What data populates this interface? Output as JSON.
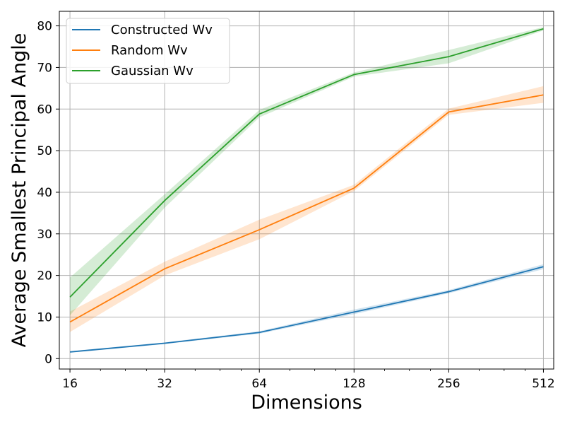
{
  "chart_data": {
    "type": "line",
    "xlabel": "Dimensions",
    "ylabel": "Average Smallest Principal Angle",
    "xscale": "log2",
    "xlim": [
      14.8,
      552
    ],
    "ylim": [
      -2.5,
      83.5
    ],
    "grid": true,
    "legend_position": "upper-left",
    "x_ticks": [
      16,
      32,
      64,
      128,
      256,
      512
    ],
    "x_tick_labels": [
      "16",
      "32",
      "64",
      "128",
      "256",
      "512"
    ],
    "y_ticks": [
      0,
      10,
      20,
      30,
      40,
      50,
      60,
      70,
      80
    ],
    "y_tick_labels": [
      "0",
      "10",
      "20",
      "30",
      "40",
      "50",
      "60",
      "70",
      "80"
    ],
    "x": [
      16,
      32,
      64,
      128,
      256,
      512
    ],
    "series": [
      {
        "name": "Constructed Wv",
        "color": "#1f77b4",
        "values": [
          1.6,
          3.7,
          6.3,
          11.2,
          16.1,
          22.1
        ],
        "lower": [
          1.4,
          3.5,
          6.0,
          10.7,
          15.7,
          21.5
        ],
        "upper": [
          1.8,
          3.9,
          6.6,
          11.8,
          16.5,
          22.7
        ]
      },
      {
        "name": "Random Wv",
        "color": "#ff7f0e",
        "values": [
          8.8,
          21.6,
          31.0,
          41.0,
          59.3,
          63.4
        ],
        "lower": [
          6.4,
          20.0,
          28.7,
          40.3,
          58.6,
          61.5
        ],
        "upper": [
          11.3,
          23.3,
          33.4,
          41.8,
          60.1,
          65.5
        ]
      },
      {
        "name": "Gaussian Wv",
        "color": "#2ca02c",
        "values": [
          14.8,
          38.0,
          58.8,
          68.3,
          72.6,
          79.3
        ],
        "lower": [
          10.4,
          36.3,
          58.0,
          67.8,
          71.0,
          78.9
        ],
        "upper": [
          19.5,
          39.5,
          59.8,
          68.8,
          74.2,
          79.7
        ]
      }
    ]
  }
}
